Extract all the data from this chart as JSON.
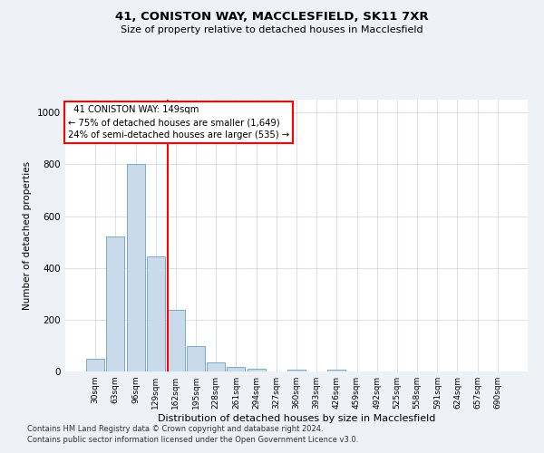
{
  "title": "41, CONISTON WAY, MACCLESFIELD, SK11 7XR",
  "subtitle": "Size of property relative to detached houses in Macclesfield",
  "xlabel": "Distribution of detached houses by size in Macclesfield",
  "ylabel": "Number of detached properties",
  "bin_labels": [
    "30sqm",
    "63sqm",
    "96sqm",
    "129sqm",
    "162sqm",
    "195sqm",
    "228sqm",
    "261sqm",
    "294sqm",
    "327sqm",
    "360sqm",
    "393sqm",
    "426sqm",
    "459sqm",
    "492sqm",
    "525sqm",
    "558sqm",
    "591sqm",
    "624sqm",
    "657sqm",
    "690sqm"
  ],
  "bar_values": [
    50,
    520,
    800,
    445,
    238,
    97,
    35,
    18,
    12,
    0,
    8,
    0,
    8,
    0,
    0,
    0,
    0,
    0,
    0,
    0,
    0
  ],
  "bar_color": "#c9daea",
  "bar_edgecolor": "#7aaac8",
  "red_line_x": 3.62,
  "ylim": [
    0,
    1050
  ],
  "annotation_line1": "  41 CONISTON WAY: 149sqm  ",
  "annotation_line2": "← 75% of detached houses are smaller (1,649)",
  "annotation_line3": "24% of semi-detached houses are larger (535) →",
  "footnote1": "Contains HM Land Registry data © Crown copyright and database right 2024.",
  "footnote2": "Contains public sector information licensed under the Open Government Licence v3.0.",
  "background_color": "#eef2f6",
  "plot_bg_color": "#ffffff"
}
